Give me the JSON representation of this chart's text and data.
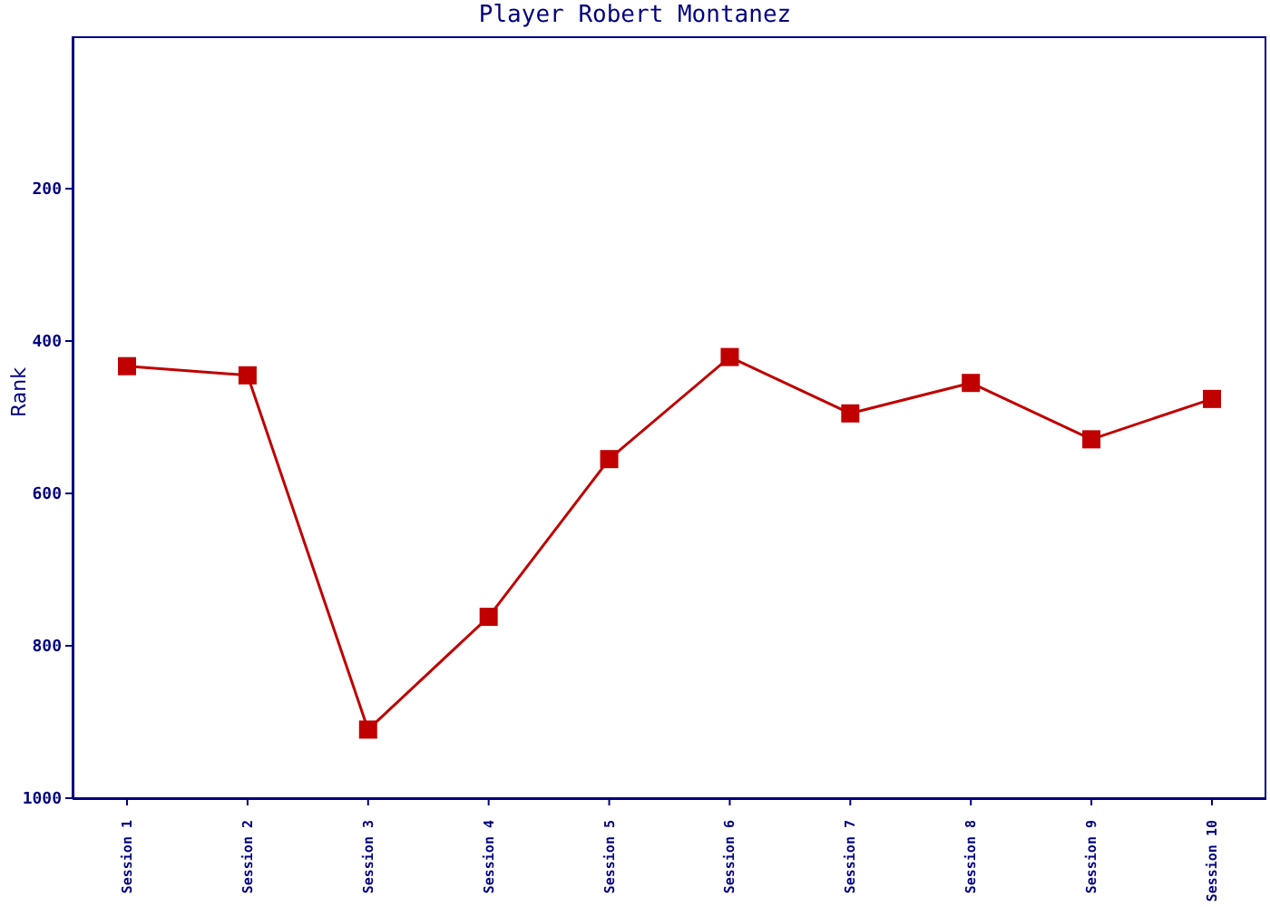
{
  "chart_data": {
    "type": "line",
    "title": "Player Robert Montanez",
    "ylabel": "Rank",
    "categories": [
      "Session 1",
      "Session 2",
      "Session 3",
      "Session 4",
      "Session 5",
      "Session 6",
      "Session 7",
      "Session 8",
      "Session 9",
      "Session 10"
    ],
    "series": [
      {
        "color": "#c00000",
        "values": [
          433,
          445,
          910,
          762,
          555,
          421,
          495,
          455,
          529,
          476
        ]
      }
    ],
    "ylim": [
      1000,
      0
    ],
    "yticks": [
      200,
      400,
      600,
      800,
      1000
    ],
    "grid": false,
    "legend": false,
    "marker": "square",
    "line_style": "solid"
  }
}
